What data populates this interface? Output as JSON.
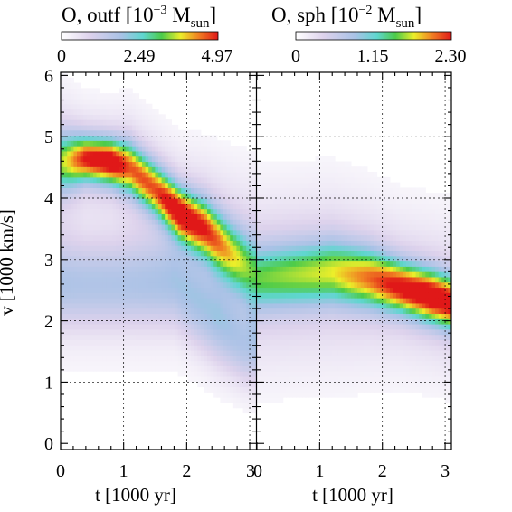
{
  "chart_data": [
    {
      "type": "heatmap",
      "title_main": "O, outf [10",
      "title_exp": "−3",
      "title_unit": " M",
      "title_sub": "sun",
      "title_close": "]",
      "colorbar_ticks": [
        "0",
        "2.49",
        "4.97"
      ],
      "colorbar_range": [
        0,
        4.97
      ],
      "xlabel": "t [1000 yr]",
      "ylabel": "v [1000 km/s]",
      "x_ticks": [
        "0",
        "1",
        "2",
        "3"
      ],
      "y_ticks": [
        "0",
        "1",
        "2",
        "3",
        "4",
        "5",
        "6"
      ],
      "xlim": [
        0,
        3.1
      ],
      "ylim": [
        -0.1,
        6.05
      ],
      "grid": true,
      "ridge": [
        {
          "t": 0.05,
          "v": 4.6,
          "w": 0.45,
          "peak": 0.55
        },
        {
          "t": 0.4,
          "v": 4.65,
          "w": 0.35,
          "peak": 0.85
        },
        {
          "t": 0.8,
          "v": 4.6,
          "w": 0.35,
          "peak": 0.95
        },
        {
          "t": 1.1,
          "v": 4.5,
          "w": 0.4,
          "peak": 0.75
        },
        {
          "t": 1.5,
          "v": 4.15,
          "w": 0.4,
          "peak": 0.75
        },
        {
          "t": 1.9,
          "v": 3.75,
          "w": 0.4,
          "peak": 0.95
        },
        {
          "t": 2.3,
          "v": 3.5,
          "w": 0.45,
          "peak": 0.8
        },
        {
          "t": 2.7,
          "v": 3.1,
          "w": 0.5,
          "peak": 0.6
        },
        {
          "t": 3.05,
          "v": 2.8,
          "w": 0.55,
          "peak": 0.45
        }
      ],
      "low_lobe": [
        {
          "t": 1.8,
          "v": 2.6,
          "w": 0.7,
          "peak": 0.3
        },
        {
          "t": 2.5,
          "v": 2.0,
          "w": 0.7,
          "peak": 0.3
        },
        {
          "t": 2.9,
          "v": 1.6,
          "w": 0.6,
          "peak": 0.25
        }
      ]
    },
    {
      "type": "heatmap",
      "title_main": "O, sph [10",
      "title_exp": "−2",
      "title_unit": " M",
      "title_sub": "sun",
      "title_close": "]",
      "colorbar_ticks": [
        "0",
        "1.15",
        "2.30"
      ],
      "colorbar_range": [
        0,
        2.3
      ],
      "xlabel": "t [1000 yr]",
      "x_ticks": [
        "0",
        "1",
        "2",
        "3"
      ],
      "xlim": [
        0,
        3.1
      ],
      "ylim": [
        -0.1,
        6.05
      ],
      "grid": true,
      "ridge": [
        {
          "t": 0.0,
          "v": 2.7,
          "w": 0.5,
          "peak": 0.45
        },
        {
          "t": 0.6,
          "v": 2.75,
          "w": 0.5,
          "peak": 0.5
        },
        {
          "t": 1.2,
          "v": 2.8,
          "w": 0.5,
          "peak": 0.55
        },
        {
          "t": 1.8,
          "v": 2.7,
          "w": 0.45,
          "peak": 0.7
        },
        {
          "t": 2.3,
          "v": 2.55,
          "w": 0.4,
          "peak": 0.85
        },
        {
          "t": 2.8,
          "v": 2.4,
          "w": 0.4,
          "peak": 0.95
        },
        {
          "t": 3.1,
          "v": 2.3,
          "w": 0.4,
          "peak": 0.9
        }
      ],
      "low_lobe": []
    }
  ]
}
